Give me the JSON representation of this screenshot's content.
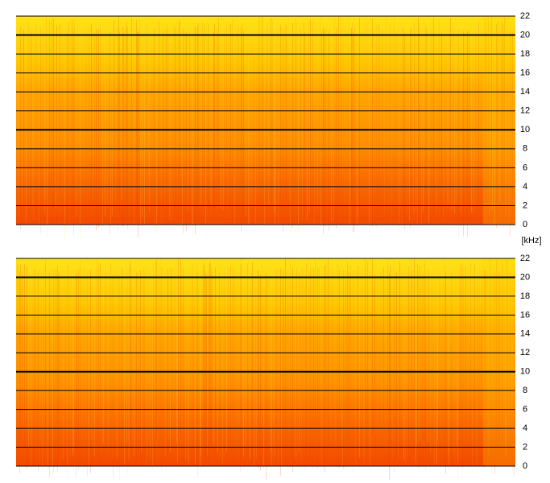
{
  "chart_data": [
    {
      "type": "spectrogram",
      "ylabel": "[kHz]",
      "ylim": [
        0,
        22
      ],
      "yticks": [
        0,
        2,
        4,
        6,
        8,
        10,
        12,
        14,
        16,
        18,
        20,
        22
      ],
      "grid": true
    },
    {
      "type": "spectrogram",
      "ylim": [
        0,
        22
      ],
      "yticks": [
        0,
        2,
        4,
        6,
        8,
        10,
        12,
        14,
        16,
        18,
        20,
        22
      ],
      "grid": true
    }
  ]
}
